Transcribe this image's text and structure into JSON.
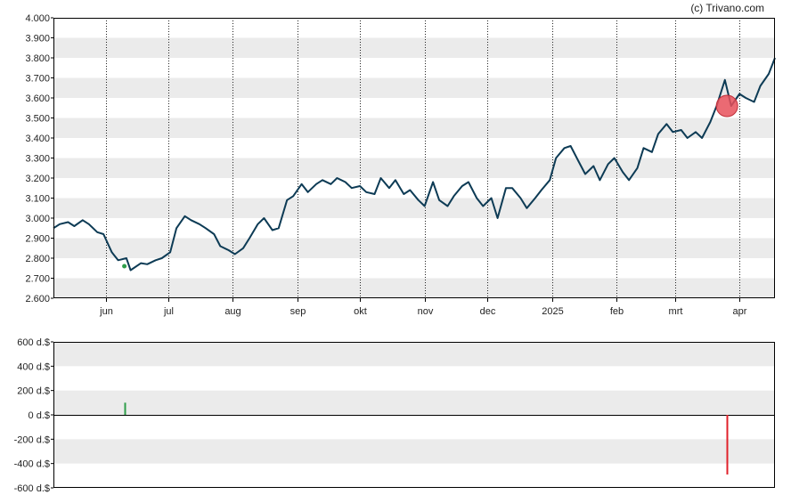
{
  "copyright": "(c) Trivano.com",
  "colors": {
    "price_line": "#0d3b55",
    "band": "#ebebeb",
    "buy": "#2e9e4a",
    "sell": "#e0202a",
    "marker_fill": "#e8505b"
  },
  "chart_data": [
    {
      "type": "line",
      "title": "",
      "xlabel": "",
      "ylabel": "",
      "ylim": [
        2600,
        4000
      ],
      "y_ticks": [
        "4.000",
        "3.900",
        "3.800",
        "3.700",
        "3.600",
        "3.500",
        "3.400",
        "3.300",
        "3.200",
        "3.100",
        "3.000",
        "2.900",
        "2.800",
        "2.700",
        "2.600"
      ],
      "x_ticks": [
        "jun",
        "jul",
        "aug",
        "sep",
        "okt",
        "nov",
        "dec",
        "2025",
        "feb",
        "mrt",
        "apr"
      ],
      "x_tick_dates": [
        "2024-06-01",
        "2024-07-01",
        "2024-08-01",
        "2024-09-01",
        "2024-10-01",
        "2024-11-01",
        "2024-12-01",
        "2025-01-01",
        "2025-02-01",
        "2025-03-01",
        "2025-04-01"
      ],
      "x_range": [
        "2024-05-07",
        "2025-04-18"
      ],
      "grid": true,
      "series": [
        {
          "values": [
            [
              "2024-05-07",
              2950
            ],
            [
              "2024-05-10",
              2970
            ],
            [
              "2024-05-14",
              2980
            ],
            [
              "2024-05-17",
              2960
            ],
            [
              "2024-05-21",
              2990
            ],
            [
              "2024-05-24",
              2970
            ],
            [
              "2024-05-28",
              2930
            ],
            [
              "2024-05-31",
              2920
            ],
            [
              "2024-06-04",
              2830
            ],
            [
              "2024-06-07",
              2790
            ],
            [
              "2024-06-11",
              2800
            ],
            [
              "2024-06-13",
              2740
            ],
            [
              "2024-06-18",
              2775
            ],
            [
              "2024-06-21",
              2770
            ],
            [
              "2024-06-25",
              2790
            ],
            [
              "2024-06-28",
              2800
            ],
            [
              "2024-07-02",
              2830
            ],
            [
              "2024-07-05",
              2950
            ],
            [
              "2024-07-09",
              3010
            ],
            [
              "2024-07-12",
              2990
            ],
            [
              "2024-07-16",
              2970
            ],
            [
              "2024-07-19",
              2950
            ],
            [
              "2024-07-23",
              2920
            ],
            [
              "2024-07-26",
              2860
            ],
            [
              "2024-07-30",
              2840
            ],
            [
              "2024-08-02",
              2820
            ],
            [
              "2024-08-06",
              2850
            ],
            [
              "2024-08-09",
              2900
            ],
            [
              "2024-08-13",
              2970
            ],
            [
              "2024-08-16",
              3000
            ],
            [
              "2024-08-20",
              2940
            ],
            [
              "2024-08-23",
              2950
            ],
            [
              "2024-08-27",
              3090
            ],
            [
              "2024-08-30",
              3110
            ],
            [
              "2024-09-03",
              3170
            ],
            [
              "2024-09-06",
              3130
            ],
            [
              "2024-09-10",
              3170
            ],
            [
              "2024-09-13",
              3190
            ],
            [
              "2024-09-17",
              3170
            ],
            [
              "2024-09-20",
              3200
            ],
            [
              "2024-09-24",
              3180
            ],
            [
              "2024-09-27",
              3150
            ],
            [
              "2024-10-01",
              3160
            ],
            [
              "2024-10-04",
              3130
            ],
            [
              "2024-10-08",
              3120
            ],
            [
              "2024-10-11",
              3200
            ],
            [
              "2024-10-15",
              3150
            ],
            [
              "2024-10-18",
              3190
            ],
            [
              "2024-10-22",
              3120
            ],
            [
              "2024-10-25",
              3140
            ],
            [
              "2024-10-29",
              3090
            ],
            [
              "2024-11-01",
              3060
            ],
            [
              "2024-11-05",
              3180
            ],
            [
              "2024-11-08",
              3090
            ],
            [
              "2024-11-12",
              3060
            ],
            [
              "2024-11-15",
              3110
            ],
            [
              "2024-11-19",
              3160
            ],
            [
              "2024-11-22",
              3180
            ],
            [
              "2024-11-26",
              3100
            ],
            [
              "2024-11-29",
              3060
            ],
            [
              "2024-12-03",
              3100
            ],
            [
              "2024-12-06",
              3000
            ],
            [
              "2024-12-10",
              3150
            ],
            [
              "2024-12-13",
              3150
            ],
            [
              "2024-12-17",
              3100
            ],
            [
              "2024-12-20",
              3050
            ],
            [
              "2024-12-24",
              3100
            ],
            [
              "2024-12-27",
              3140
            ],
            [
              "2024-12-31",
              3190
            ],
            [
              "2025-01-03",
              3300
            ],
            [
              "2025-01-07",
              3350
            ],
            [
              "2025-01-10",
              3360
            ],
            [
              "2025-01-14",
              3280
            ],
            [
              "2025-01-17",
              3220
            ],
            [
              "2025-01-21",
              3260
            ],
            [
              "2025-01-24",
              3190
            ],
            [
              "2025-01-28",
              3270
            ],
            [
              "2025-01-31",
              3300
            ],
            [
              "2025-02-04",
              3230
            ],
            [
              "2025-02-07",
              3190
            ],
            [
              "2025-02-11",
              3250
            ],
            [
              "2025-02-14",
              3350
            ],
            [
              "2025-02-18",
              3330
            ],
            [
              "2025-02-21",
              3420
            ],
            [
              "2025-02-25",
              3470
            ],
            [
              "2025-02-28",
              3430
            ],
            [
              "2025-03-04",
              3440
            ],
            [
              "2025-03-07",
              3400
            ],
            [
              "2025-03-11",
              3430
            ],
            [
              "2025-03-14",
              3400
            ],
            [
              "2025-03-18",
              3480
            ],
            [
              "2025-03-21",
              3560
            ],
            [
              "2025-03-25",
              3690
            ],
            [
              "2025-03-28",
              3560
            ],
            [
              "2025-04-01",
              3620
            ],
            [
              "2025-04-04",
              3600
            ],
            [
              "2025-04-08",
              3580
            ],
            [
              "2025-04-11",
              3660
            ],
            [
              "2025-04-15",
              3720
            ],
            [
              "2025-04-18",
              3800
            ]
          ]
        }
      ],
      "markers": [
        {
          "date": "2024-06-10",
          "value": 2760,
          "kind": "buy"
        },
        {
          "date": "2025-03-26",
          "value": 3560,
          "kind": "sell"
        }
      ]
    },
    {
      "type": "bar",
      "title": "",
      "xlabel": "",
      "ylabel": "",
      "ylim": [
        -600,
        600
      ],
      "y_ticks": [
        "600 d.$",
        "400 d.$",
        "200 d.$",
        "0 d.$",
        "-200 d.$",
        "-400 d.$",
        "-600 d.$"
      ],
      "grid": true,
      "bars": [
        {
          "date": "2024-06-10",
          "value": 100,
          "kind": "buy"
        },
        {
          "date": "2025-03-26",
          "value": -490,
          "kind": "sell"
        }
      ]
    }
  ]
}
